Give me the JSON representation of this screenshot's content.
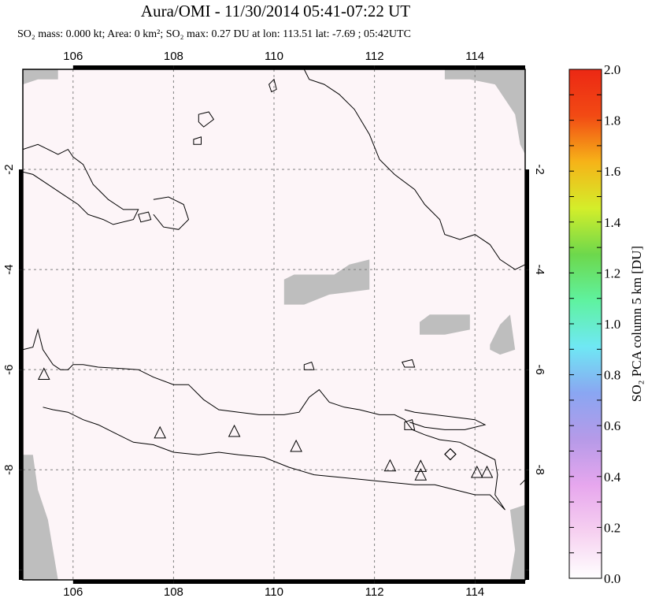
{
  "title": "Aura/OMI - 11/30/2014 05:41-07:22 UT",
  "subtitle": "SO₂ mass: 0.000 kt; Area: 0 km²; SO₂ max: 0.27 DU at lon: 113.51 lat: -7.69 ; 05:42UTC",
  "colors": {
    "no_data": "#bebebe",
    "coastline": "#000000",
    "grid": "#808080",
    "background_wash": "#fdf5f8"
  },
  "chart_data": {
    "type": "heatmap",
    "xlim": [
      105,
      115
    ],
    "ylim": [
      -10.2,
      0.0
    ],
    "x_ticks": [
      106,
      108,
      110,
      112,
      114
    ],
    "y_ticks": [
      -2,
      -4,
      -6,
      -8
    ],
    "x_tick_labels": [
      "106",
      "108",
      "110",
      "112",
      "114"
    ],
    "y_tick_labels": [
      "-2",
      "-4",
      "-6",
      "-8"
    ],
    "grid": true,
    "colorbar": {
      "label": "SO₂ PCA column 5 km [DU]",
      "min": 0.0,
      "max": 2.0,
      "tick_labels": [
        "0.0",
        "0.2",
        "0.4",
        "0.6",
        "0.8",
        "1.0",
        "1.2",
        "1.4",
        "1.6",
        "1.8",
        "2.0"
      ],
      "ticks": [
        0.0,
        0.2,
        0.4,
        0.6,
        0.8,
        1.0,
        1.2,
        1.4,
        1.6,
        1.8,
        2.0
      ],
      "colors": [
        "#ffffff",
        "#f6d0f0",
        "#e7a7ee",
        "#b69ae8",
        "#8aa6f2",
        "#6fe8f4",
        "#5ff2a0",
        "#6dd84c",
        "#d4ee2a",
        "#f6b318",
        "#f24a14",
        "#ec2814"
      ]
    },
    "so2_max": {
      "value": 0.27,
      "lon": 113.51,
      "lat": -7.69
    },
    "volcanoes": [
      {
        "lon": 105.42,
        "lat": -6.1
      },
      {
        "lon": 107.73,
        "lat": -7.27
      },
      {
        "lon": 109.21,
        "lat": -7.24
      },
      {
        "lon": 110.44,
        "lat": -7.54
      },
      {
        "lon": 112.31,
        "lat": -7.93
      },
      {
        "lon": 112.92,
        "lat": -7.94
      },
      {
        "lon": 112.92,
        "lat": -8.11
      },
      {
        "lon": 114.04,
        "lat": -8.06
      },
      {
        "lon": 114.24,
        "lat": -8.06
      }
    ],
    "no_data_regions": [
      [
        [
          105.0,
          0.0
        ],
        [
          105.7,
          0.0
        ],
        [
          105.7,
          -0.2
        ],
        [
          105.3,
          -0.2
        ],
        [
          105.0,
          -0.3
        ]
      ],
      [
        [
          113.4,
          0.0
        ],
        [
          115.0,
          0.0
        ],
        [
          115.0,
          -1.7
        ],
        [
          114.9,
          -1.5
        ],
        [
          114.8,
          -0.9
        ],
        [
          114.6,
          -0.6
        ],
        [
          114.4,
          -0.3
        ],
        [
          113.9,
          -0.2
        ],
        [
          113.4,
          -0.2
        ]
      ],
      [
        [
          105.0,
          -7.7
        ],
        [
          105.2,
          -7.7
        ],
        [
          105.3,
          -8.4
        ],
        [
          105.5,
          -9.0
        ],
        [
          105.6,
          -9.6
        ],
        [
          105.7,
          -10.2
        ],
        [
          105.0,
          -10.2
        ]
      ],
      [
        [
          114.7,
          -8.8
        ],
        [
          115.0,
          -8.7
        ],
        [
          115.0,
          -10.2
        ],
        [
          114.7,
          -10.2
        ],
        [
          114.8,
          -9.6
        ]
      ],
      [
        [
          110.2,
          -4.2
        ],
        [
          110.4,
          -4.1
        ],
        [
          111.2,
          -4.1
        ],
        [
          111.5,
          -3.9
        ],
        [
          111.9,
          -3.8
        ],
        [
          111.9,
          -4.4
        ],
        [
          111.5,
          -4.45
        ],
        [
          111.1,
          -4.5
        ],
        [
          110.6,
          -4.7
        ],
        [
          110.2,
          -4.7
        ]
      ],
      [
        [
          112.9,
          -5.05
        ],
        [
          113.1,
          -4.9
        ],
        [
          113.9,
          -4.9
        ],
        [
          113.9,
          -5.2
        ],
        [
          113.4,
          -5.3
        ],
        [
          112.9,
          -5.3
        ]
      ],
      [
        [
          114.3,
          -5.5
        ],
        [
          114.5,
          -5.1
        ],
        [
          114.7,
          -4.9
        ],
        [
          114.8,
          -5.6
        ],
        [
          114.5,
          -5.7
        ],
        [
          114.3,
          -5.6
        ]
      ]
    ],
    "coastlines": [
      [
        [
          105.0,
          -1.6
        ],
        [
          105.3,
          -1.5
        ],
        [
          105.5,
          -1.6
        ],
        [
          105.7,
          -1.7
        ],
        [
          105.9,
          -1.6
        ],
        [
          106.0,
          -1.75
        ],
        [
          106.2,
          -1.9
        ],
        [
          106.4,
          -2.3
        ],
        [
          106.7,
          -2.6
        ],
        [
          107.0,
          -2.8
        ],
        [
          107.3,
          -2.8
        ],
        [
          107.2,
          -3.0
        ],
        [
          106.8,
          -3.1
        ],
        [
          106.6,
          -3.0
        ],
        [
          106.3,
          -2.9
        ],
        [
          106.1,
          -2.7
        ],
        [
          105.8,
          -2.5
        ],
        [
          105.5,
          -2.3
        ],
        [
          105.2,
          -2.1
        ],
        [
          105.0,
          -2.05
        ]
      ],
      [
        [
          105.0,
          -5.6
        ],
        [
          105.2,
          -5.55
        ],
        [
          105.3,
          -5.2
        ],
        [
          105.4,
          -5.6
        ],
        [
          105.6,
          -5.9
        ],
        [
          105.75,
          -6.0
        ],
        [
          105.9,
          -6.0
        ],
        [
          106.0,
          -5.9
        ],
        [
          106.2,
          -5.9
        ],
        [
          106.5,
          -5.95
        ],
        [
          107.0,
          -5.98
        ],
        [
          107.3,
          -6.0
        ],
        [
          107.6,
          -6.15
        ],
        [
          108.0,
          -6.3
        ],
        [
          108.3,
          -6.3
        ],
        [
          108.6,
          -6.6
        ],
        [
          108.9,
          -6.8
        ],
        [
          109.3,
          -6.85
        ],
        [
          109.7,
          -6.9
        ],
        [
          110.2,
          -6.9
        ],
        [
          110.5,
          -6.85
        ],
        [
          110.7,
          -6.55
        ],
        [
          110.9,
          -6.4
        ],
        [
          111.1,
          -6.65
        ],
        [
          111.4,
          -6.75
        ],
        [
          111.7,
          -6.8
        ],
        [
          112.1,
          -6.9
        ],
        [
          112.4,
          -6.9
        ],
        [
          112.6,
          -7.0
        ],
        [
          112.75,
          -7.2
        ],
        [
          113.0,
          -7.3
        ],
        [
          113.3,
          -7.4
        ],
        [
          113.7,
          -7.45
        ],
        [
          114.1,
          -7.65
        ],
        [
          114.4,
          -7.8
        ],
        [
          114.45,
          -8.1
        ],
        [
          114.4,
          -8.5
        ],
        [
          114.6,
          -8.8
        ],
        [
          114.5,
          -8.7
        ],
        [
          114.3,
          -8.5
        ],
        [
          114.0,
          -8.5
        ],
        [
          113.6,
          -8.4
        ],
        [
          113.2,
          -8.3
        ],
        [
          112.8,
          -8.3
        ],
        [
          112.3,
          -8.25
        ],
        [
          111.8,
          -8.2
        ],
        [
          111.3,
          -8.15
        ],
        [
          110.8,
          -8.1
        ],
        [
          110.3,
          -7.95
        ],
        [
          109.8,
          -7.75
        ],
        [
          109.3,
          -7.7
        ],
        [
          108.9,
          -7.65
        ],
        [
          108.5,
          -7.7
        ],
        [
          108.0,
          -7.65
        ],
        [
          107.6,
          -7.5
        ],
        [
          107.2,
          -7.45
        ],
        [
          106.9,
          -7.3
        ],
        [
          106.5,
          -7.1
        ],
        [
          106.2,
          -7.0
        ],
        [
          105.9,
          -6.85
        ],
        [
          105.6,
          -6.8
        ],
        [
          105.4,
          -6.75
        ]
      ],
      [
        [
          112.6,
          -6.8
        ],
        [
          112.8,
          -6.85
        ],
        [
          113.2,
          -6.9
        ],
        [
          113.6,
          -6.95
        ],
        [
          114.0,
          -7.0
        ],
        [
          114.2,
          -7.1
        ],
        [
          113.8,
          -7.2
        ],
        [
          113.4,
          -7.2
        ],
        [
          113.0,
          -7.15
        ],
        [
          112.7,
          -7.05
        ]
      ],
      [
        [
          110.6,
          0.0
        ],
        [
          110.7,
          -0.2
        ],
        [
          111.0,
          -0.3
        ],
        [
          111.3,
          -0.5
        ],
        [
          111.6,
          -0.8
        ],
        [
          111.9,
          -1.3
        ],
        [
          112.1,
          -1.8
        ],
        [
          112.4,
          -2.1
        ],
        [
          112.8,
          -2.4
        ],
        [
          113.0,
          -2.7
        ],
        [
          113.3,
          -3.0
        ],
        [
          113.4,
          -3.3
        ],
        [
          113.7,
          -3.4
        ],
        [
          114.0,
          -3.3
        ],
        [
          114.3,
          -3.5
        ],
        [
          114.5,
          -3.8
        ],
        [
          114.8,
          -4.0
        ],
        [
          115.0,
          -3.9
        ]
      ],
      [
        [
          107.6,
          -2.6
        ],
        [
          107.9,
          -2.55
        ],
        [
          108.2,
          -2.7
        ],
        [
          108.3,
          -3.0
        ],
        [
          108.1,
          -3.2
        ],
        [
          107.8,
          -3.15
        ],
        [
          107.6,
          -2.9
        ]
      ],
      [
        [
          114.9,
          -8.3
        ],
        [
          115.0,
          -8.2
        ],
        [
          115.0,
          -8.6
        ]
      ]
    ],
    "islands": [
      [
        [
          108.5,
          -0.9
        ],
        [
          108.7,
          -0.85
        ],
        [
          108.8,
          -1.0
        ],
        [
          108.6,
          -1.15
        ],
        [
          108.5,
          -1.05
        ]
      ],
      [
        [
          109.9,
          -0.3
        ],
        [
          110.0,
          -0.2
        ],
        [
          110.05,
          -0.4
        ],
        [
          109.95,
          -0.45
        ]
      ],
      [
        [
          107.3,
          -2.9
        ],
        [
          107.5,
          -2.85
        ],
        [
          107.55,
          -3.0
        ],
        [
          107.35,
          -3.05
        ]
      ],
      [
        [
          108.4,
          -1.4
        ],
        [
          108.55,
          -1.35
        ],
        [
          108.55,
          -1.5
        ],
        [
          108.4,
          -1.5
        ]
      ],
      [
        [
          110.6,
          -5.9
        ],
        [
          110.75,
          -5.85
        ],
        [
          110.8,
          -6.0
        ],
        [
          110.6,
          -6.0
        ]
      ],
      [
        [
          112.55,
          -5.85
        ],
        [
          112.75,
          -5.8
        ],
        [
          112.8,
          -5.95
        ],
        [
          112.6,
          -5.95
        ]
      ],
      [
        [
          112.6,
          -7.05
        ],
        [
          112.75,
          -7.0
        ],
        [
          112.8,
          -7.2
        ],
        [
          112.6,
          -7.2
        ]
      ]
    ]
  }
}
